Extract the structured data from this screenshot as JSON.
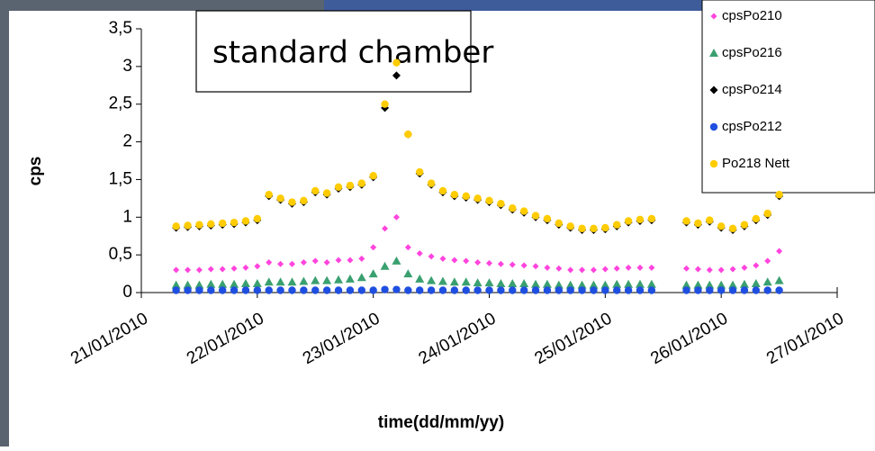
{
  "chart_data": {
    "type": "scatter",
    "annotation": "standard chamber",
    "x_label": "time(dd/mm/yy)",
    "y_label": "cps",
    "xlim": [
      21,
      27
    ],
    "xticks": [
      {
        "value": 21,
        "label": "21/01/2010"
      },
      {
        "value": 22,
        "label": "22/01/2010"
      },
      {
        "value": 23,
        "label": "23/01/2010"
      },
      {
        "value": 24,
        "label": "24/01/2010"
      },
      {
        "value": 25,
        "label": "25/01/2010"
      },
      {
        "value": 26,
        "label": "26/01/2010"
      },
      {
        "value": 27,
        "label": "27/01/2010"
      }
    ],
    "ylim": [
      0,
      3.5
    ],
    "yticks": [
      0,
      {
        "value": 0.5,
        "label": "0,5"
      },
      1,
      {
        "value": 1.5,
        "label": "1,5"
      },
      2,
      {
        "value": 2.5,
        "label": "2,5"
      },
      3,
      {
        "value": 3.5,
        "label": "3,5"
      }
    ],
    "legend": "top-right",
    "x": [
      21.3,
      21.4,
      21.5,
      21.6,
      21.7,
      21.8,
      21.9,
      22.0,
      22.1,
      22.2,
      22.3,
      22.4,
      22.5,
      22.6,
      22.7,
      22.8,
      22.9,
      23.0,
      23.1,
      23.2,
      23.3,
      23.4,
      23.5,
      23.6,
      23.7,
      23.8,
      23.9,
      24.0,
      24.1,
      24.2,
      24.3,
      24.4,
      24.5,
      24.6,
      24.7,
      24.8,
      24.9,
      25.0,
      25.1,
      25.2,
      25.3,
      25.4,
      25.7,
      25.8,
      25.9,
      26.0,
      26.1,
      26.2,
      26.3,
      26.4,
      26.5
    ],
    "series": [
      {
        "name": "cpsPo210",
        "color": "#ff44dd",
        "marker": "diamond-small",
        "values": [
          0.3,
          0.3,
          0.3,
          0.31,
          0.31,
          0.32,
          0.33,
          0.35,
          0.4,
          0.38,
          0.38,
          0.4,
          0.42,
          0.4,
          0.43,
          0.43,
          0.45,
          0.6,
          0.85,
          1.0,
          0.6,
          0.52,
          0.48,
          0.45,
          0.43,
          0.42,
          0.4,
          0.39,
          0.38,
          0.37,
          0.36,
          0.35,
          0.33,
          0.32,
          0.3,
          0.3,
          0.3,
          0.31,
          0.32,
          0.33,
          0.33,
          0.33,
          0.32,
          0.31,
          0.3,
          0.3,
          0.31,
          0.33,
          0.36,
          0.42,
          0.55
        ]
      },
      {
        "name": "cpsPo216",
        "color": "#3aa070",
        "marker": "triangle",
        "values": [
          0.1,
          0.1,
          0.1,
          0.11,
          0.11,
          0.11,
          0.12,
          0.12,
          0.14,
          0.14,
          0.14,
          0.15,
          0.16,
          0.16,
          0.17,
          0.18,
          0.2,
          0.25,
          0.35,
          0.42,
          0.25,
          0.18,
          0.16,
          0.15,
          0.14,
          0.14,
          0.13,
          0.13,
          0.12,
          0.12,
          0.12,
          0.11,
          0.11,
          0.1,
          0.1,
          0.1,
          0.1,
          0.1,
          0.11,
          0.11,
          0.11,
          0.11,
          0.1,
          0.1,
          0.1,
          0.1,
          0.1,
          0.11,
          0.12,
          0.14,
          0.16
        ]
      },
      {
        "name": "cpsPo214",
        "color": "#000000",
        "marker": "diamond",
        "values": [
          0.86,
          0.87,
          0.88,
          0.89,
          0.9,
          0.91,
          0.93,
          0.96,
          1.28,
          1.23,
          1.18,
          1.2,
          1.33,
          1.3,
          1.38,
          1.4,
          1.43,
          1.53,
          2.45,
          2.88,
          2.1,
          1.58,
          1.43,
          1.33,
          1.28,
          1.26,
          1.23,
          1.2,
          1.16,
          1.1,
          1.06,
          1.0,
          0.96,
          0.9,
          0.86,
          0.83,
          0.83,
          0.84,
          0.88,
          0.93,
          0.95,
          0.96,
          0.93,
          0.9,
          0.94,
          0.86,
          0.83,
          0.88,
          0.96,
          1.03,
          1.28
        ]
      },
      {
        "name": "cpsPo212",
        "color": "#1f4fe0",
        "marker": "circle",
        "values": [
          0.03,
          0.03,
          0.03,
          0.03,
          0.03,
          0.03,
          0.03,
          0.03,
          0.03,
          0.03,
          0.03,
          0.03,
          0.03,
          0.03,
          0.03,
          0.03,
          0.03,
          0.03,
          0.04,
          0.04,
          0.03,
          0.03,
          0.03,
          0.03,
          0.03,
          0.03,
          0.03,
          0.03,
          0.03,
          0.03,
          0.03,
          0.03,
          0.03,
          0.03,
          0.03,
          0.03,
          0.03,
          0.03,
          0.03,
          0.03,
          0.03,
          0.03,
          0.03,
          0.03,
          0.03,
          0.03,
          0.03,
          0.03,
          0.03,
          0.03,
          0.03
        ]
      },
      {
        "name": "Po218 Nett",
        "color": "#ffcc00",
        "marker": "circle",
        "values": [
          0.88,
          0.89,
          0.9,
          0.91,
          0.92,
          0.93,
          0.95,
          0.98,
          1.3,
          1.25,
          1.2,
          1.22,
          1.35,
          1.32,
          1.4,
          1.42,
          1.45,
          1.55,
          2.5,
          3.05,
          2.1,
          1.6,
          1.45,
          1.35,
          1.3,
          1.28,
          1.25,
          1.22,
          1.18,
          1.12,
          1.08,
          1.02,
          0.98,
          0.92,
          0.88,
          0.85,
          0.85,
          0.86,
          0.9,
          0.95,
          0.97,
          0.98,
          0.95,
          0.92,
          0.96,
          0.88,
          0.85,
          0.9,
          0.98,
          1.05,
          1.3
        ]
      }
    ]
  }
}
